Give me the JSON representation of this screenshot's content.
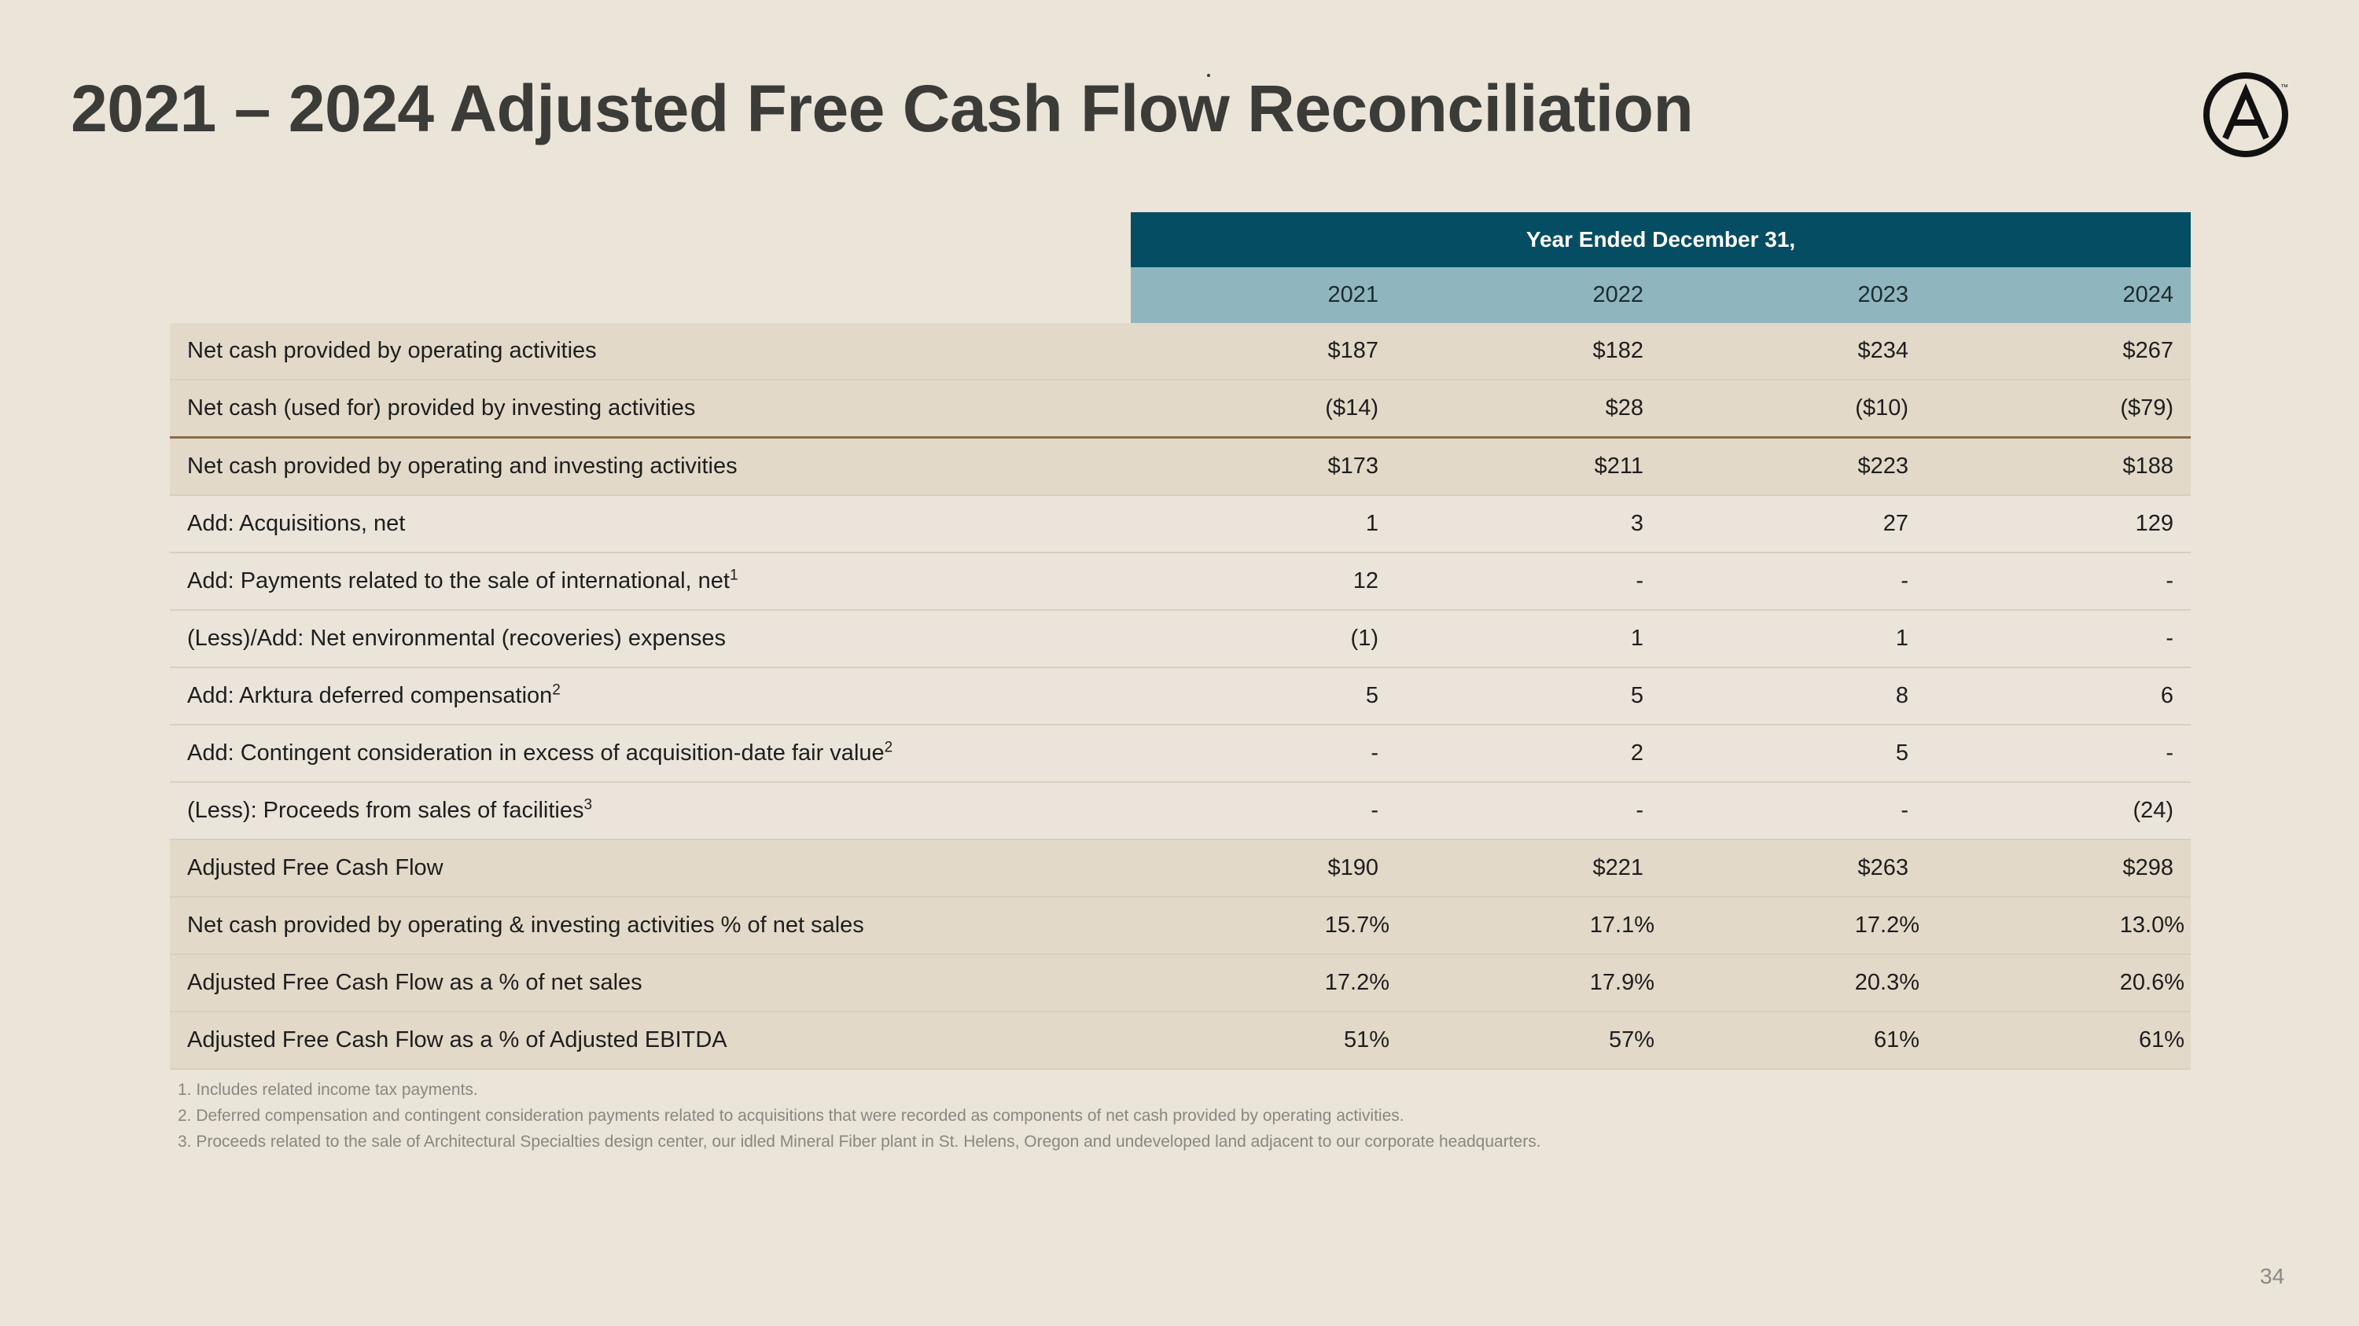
{
  "title": "2021 – 2024 Adjusted Free Cash Flow Reconciliation",
  "logo_name": "armstrong-logo",
  "logo_tm": "™",
  "table": {
    "banner": "Year Ended December 31,",
    "years": [
      "2021",
      "2022",
      "2023",
      "2024"
    ],
    "rows": [
      {
        "label": "Net cash provided by operating activities",
        "sup": "",
        "values": [
          "$187",
          "$182",
          "$234",
          "$267"
        ]
      },
      {
        "label": "Net cash (used for) provided by investing activities",
        "sup": "",
        "values": [
          "($14)",
          "$28",
          "($10)",
          "($79)"
        ]
      },
      {
        "label": "Net cash provided by operating and investing activities",
        "sup": "",
        "values": [
          "$173",
          "$211",
          "$223",
          "$188"
        ]
      },
      {
        "label": "Add: Acquisitions, net",
        "sup": "",
        "values": [
          "1",
          "3",
          "27",
          "129"
        ]
      },
      {
        "label": "Add: Payments related to the sale of international, net",
        "sup": "1",
        "values": [
          "12",
          "-",
          "-",
          "-"
        ]
      },
      {
        "label": "(Less)/Add: Net environmental (recoveries) expenses",
        "sup": "",
        "values": [
          "(1)",
          "1",
          "1",
          "-"
        ]
      },
      {
        "label": "Add: Arktura deferred compensation",
        "sup": "2",
        "values": [
          "5",
          "5",
          "8",
          "6"
        ]
      },
      {
        "label": "Add: Contingent consideration in excess of acquisition-date fair value",
        "sup": "2",
        "values": [
          "-",
          "2",
          "5",
          "-"
        ]
      },
      {
        "label": "(Less): Proceeds from sales of facilities",
        "sup": "3",
        "values": [
          "-",
          "-",
          "-",
          "(24)"
        ]
      },
      {
        "label": "Adjusted Free Cash Flow",
        "sup": "",
        "values": [
          "$190",
          "$221",
          "$263",
          "$298"
        ]
      },
      {
        "label": "Net cash provided by operating & investing activities % of net sales",
        "sup": "",
        "values": [
          "15.7%",
          "17.1%",
          "17.2%",
          "13.0%"
        ]
      },
      {
        "label": "Adjusted Free Cash Flow as a % of net sales",
        "sup": "",
        "values": [
          "17.2%",
          "17.9%",
          "20.3%",
          "20.6%"
        ]
      },
      {
        "label": "Adjusted Free Cash Flow as a % of Adjusted EBITDA",
        "sup": "",
        "values": [
          "51%",
          "57%",
          "61%",
          "61%"
        ]
      }
    ]
  },
  "footnotes": [
    "1. Includes related income tax payments.",
    "2. Deferred compensation and contingent consideration payments related to acquisitions that were recorded as components of net cash provided by operating activities.",
    "3. Proceeds related to the sale of Architectural Specialties design center, our idled Mineral Fiber plant in St. Helens, Oregon and undeveloped land adjacent to our corporate headquarters."
  ],
  "page_number": "34",
  "colors": {
    "background": "#eae4d9",
    "title": "#3b3b38",
    "banner": "#054d63",
    "year_header": "#8fb6bf",
    "band": "#e3d9c9",
    "separator": "#8a6a4a"
  }
}
